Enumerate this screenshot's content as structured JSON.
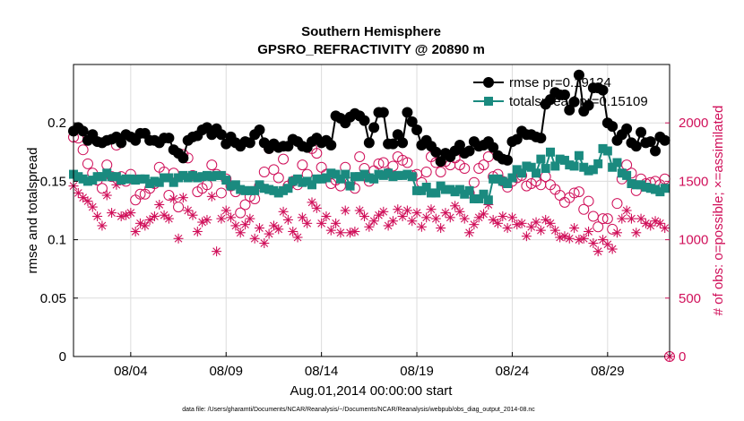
{
  "chart_data": {
    "type": "line",
    "title": "Southern Hemisphere",
    "subtitle": "GPSRO_REFRACTIVITY @ 20890 m",
    "xlabel": "Aug.01,2014 00:00:00 start",
    "ylabel": "rmse and totalspread",
    "y2label": "# of obs: o=possible; ×=assimilated",
    "footer": "data file: /Users/gharamti/Documents/NCAR/Reanalysis/~/Documents/NCAR/Reanalysis/webpub/obs_diag_output_2014-08.nc",
    "xlim": [
      1.0,
      32.25
    ],
    "ylim": [
      0,
      0.25
    ],
    "y2lim": [
      0,
      2500
    ],
    "x_ticks": [
      {
        "value": 4.0,
        "label": "08/04"
      },
      {
        "value": 9.0,
        "label": "08/09"
      },
      {
        "value": 14.0,
        "label": "08/14"
      },
      {
        "value": 19.0,
        "label": "08/19"
      },
      {
        "value": 24.0,
        "label": "08/24"
      },
      {
        "value": 29.0,
        "label": "08/29"
      }
    ],
    "y_ticks": [
      "0",
      "0.05",
      "0.1",
      "0.15",
      "0.2"
    ],
    "y2_ticks": [
      "0",
      "500",
      "1000",
      "1500",
      "2000"
    ],
    "grid": true,
    "legend_position": "top-right",
    "series": [
      {
        "name": "rmse  pr=0.19124",
        "color": "#000000",
        "marker": "filled-circle",
        "axis": "left",
        "x": [
          1.0,
          1.25,
          1.5,
          1.75,
          2.0,
          2.25,
          2.5,
          2.75,
          3.0,
          3.25,
          3.5,
          3.75,
          4.0,
          4.25,
          4.5,
          4.75,
          5.0,
          5.25,
          5.5,
          5.75,
          6.0,
          6.25,
          6.5,
          6.75,
          7.0,
          7.25,
          7.5,
          7.75,
          8.0,
          8.25,
          8.5,
          8.75,
          9.0,
          9.25,
          9.5,
          9.75,
          10.0,
          10.25,
          10.5,
          10.75,
          11.0,
          11.25,
          11.5,
          11.75,
          12.0,
          12.25,
          12.5,
          12.75,
          13.0,
          13.25,
          13.5,
          13.75,
          14.0,
          14.25,
          14.5,
          14.75,
          15.0,
          15.25,
          15.5,
          15.75,
          16.0,
          16.25,
          16.5,
          16.75,
          17.0,
          17.25,
          17.5,
          17.75,
          18.0,
          18.25,
          18.5,
          18.75,
          19.0,
          19.25,
          19.5,
          19.75,
          20.0,
          20.25,
          20.5,
          20.75,
          21.0,
          21.25,
          21.5,
          21.75,
          22.0,
          22.25,
          22.5,
          22.75,
          23.0,
          23.25,
          23.5,
          23.75,
          24.0,
          24.25,
          24.5,
          24.75,
          25.0,
          25.25,
          25.5,
          25.75,
          26.0,
          26.25,
          26.5,
          26.75,
          27.0,
          27.25,
          27.5,
          27.75,
          28.0,
          28.25,
          28.5,
          28.75,
          29.0,
          29.25,
          29.5,
          29.75,
          30.0,
          30.25,
          30.5,
          30.75,
          31.0,
          31.25,
          31.5,
          31.75,
          32.0
        ],
        "values": [
          0.193,
          0.196,
          0.193,
          0.185,
          0.19,
          0.184,
          0.183,
          0.185,
          0.186,
          0.188,
          0.183,
          0.19,
          0.188,
          0.185,
          0.191,
          0.191,
          0.185,
          0.185,
          0.183,
          0.187,
          0.187,
          0.177,
          0.174,
          0.17,
          0.185,
          0.188,
          0.189,
          0.194,
          0.196,
          0.19,
          0.195,
          0.19,
          0.182,
          0.188,
          0.183,
          0.18,
          0.184,
          0.183,
          0.19,
          0.194,
          0.183,
          0.178,
          0.182,
          0.179,
          0.18,
          0.18,
          0.186,
          0.184,
          0.18,
          0.179,
          0.184,
          0.187,
          0.183,
          0.185,
          0.181,
          0.206,
          0.204,
          0.2,
          0.205,
          0.208,
          0.206,
          0.202,
          0.183,
          0.196,
          0.209,
          0.209,
          0.182,
          0.182,
          0.19,
          0.183,
          0.209,
          0.201,
          0.194,
          0.181,
          0.185,
          0.18,
          0.175,
          0.167,
          0.174,
          0.171,
          0.176,
          0.181,
          0.174,
          0.176,
          0.184,
          0.18,
          0.181,
          0.184,
          0.179,
          0.172,
          0.169,
          0.168,
          0.184,
          0.186,
          0.193,
          0.19,
          0.19,
          0.188,
          0.187,
          0.216,
          0.22,
          0.226,
          0.224,
          0.224,
          0.211,
          0.218,
          0.241,
          0.21,
          0.215,
          0.23,
          0.23,
          0.228,
          0.2,
          0.197,
          0.185,
          0.19,
          0.195,
          0.183,
          0.18,
          0.192,
          0.183,
          0.184,
          0.176,
          0.188,
          0.185
        ]
      },
      {
        "name": "totalspread  pr=0.15109",
        "color": "#1a8a7f",
        "marker": "filled-square",
        "axis": "left",
        "x": [
          1.0,
          1.25,
          1.5,
          1.75,
          2.0,
          2.25,
          2.5,
          2.75,
          3.0,
          3.25,
          3.5,
          3.75,
          4.0,
          4.25,
          4.5,
          4.75,
          5.0,
          5.25,
          5.5,
          5.75,
          6.0,
          6.25,
          6.5,
          6.75,
          7.0,
          7.25,
          7.5,
          7.75,
          8.0,
          8.25,
          8.5,
          8.75,
          9.0,
          9.25,
          9.5,
          9.75,
          10.0,
          10.25,
          10.5,
          10.75,
          11.0,
          11.25,
          11.5,
          11.75,
          12.0,
          12.25,
          12.5,
          12.75,
          13.0,
          13.25,
          13.5,
          13.75,
          14.0,
          14.25,
          14.5,
          14.75,
          15.0,
          15.25,
          15.5,
          15.75,
          16.0,
          16.25,
          16.5,
          16.75,
          17.0,
          17.25,
          17.5,
          17.75,
          18.0,
          18.25,
          18.5,
          18.75,
          19.0,
          19.25,
          19.5,
          19.75,
          20.0,
          20.25,
          20.5,
          20.75,
          21.0,
          21.25,
          21.5,
          21.75,
          22.0,
          22.25,
          22.5,
          22.75,
          23.0,
          23.25,
          23.5,
          23.75,
          24.0,
          24.25,
          24.5,
          24.75,
          25.0,
          25.25,
          25.5,
          25.75,
          26.0,
          26.25,
          26.5,
          26.75,
          27.0,
          27.25,
          27.5,
          27.75,
          28.0,
          28.25,
          28.5,
          28.75,
          29.0,
          29.25,
          29.5,
          29.75,
          30.0,
          30.25,
          30.5,
          30.75,
          31.0,
          31.25,
          31.5,
          31.75,
          32.0
        ],
        "values": [
          0.156,
          0.154,
          0.152,
          0.15,
          0.151,
          0.154,
          0.154,
          0.157,
          0.154,
          0.154,
          0.151,
          0.152,
          0.152,
          0.151,
          0.152,
          0.152,
          0.148,
          0.15,
          0.149,
          0.153,
          0.153,
          0.149,
          0.153,
          0.155,
          0.153,
          0.155,
          0.153,
          0.154,
          0.155,
          0.154,
          0.155,
          0.155,
          0.151,
          0.146,
          0.147,
          0.143,
          0.142,
          0.142,
          0.142,
          0.147,
          0.144,
          0.143,
          0.142,
          0.14,
          0.142,
          0.144,
          0.15,
          0.152,
          0.149,
          0.15,
          0.147,
          0.152,
          0.152,
          0.153,
          0.157,
          0.156,
          0.152,
          0.156,
          0.146,
          0.154,
          0.154,
          0.156,
          0.153,
          0.152,
          0.156,
          0.155,
          0.157,
          0.154,
          0.155,
          0.155,
          0.156,
          0.154,
          0.142,
          0.142,
          0.145,
          0.14,
          0.14,
          0.146,
          0.143,
          0.143,
          0.141,
          0.143,
          0.139,
          0.142,
          0.135,
          0.135,
          0.139,
          0.134,
          0.152,
          0.152,
          0.15,
          0.148,
          0.153,
          0.16,
          0.157,
          0.163,
          0.162,
          0.157,
          0.169,
          0.161,
          0.175,
          0.163,
          0.169,
          0.168,
          0.164,
          0.163,
          0.172,
          0.162,
          0.159,
          0.16,
          0.165,
          0.178,
          0.176,
          0.162,
          0.166,
          0.157,
          0.155,
          0.148,
          0.147,
          0.147,
          0.145,
          0.144,
          0.143,
          0.141,
          0.144
        ]
      },
      {
        "name": "possible",
        "color": "#d0105a",
        "marker": "open-circle",
        "axis": "right",
        "x": [
          1.0,
          1.25,
          1.5,
          1.75,
          2.0,
          2.25,
          2.5,
          2.75,
          3.0,
          3.25,
          3.5,
          3.75,
          4.0,
          4.25,
          4.5,
          4.75,
          5.0,
          5.25,
          5.5,
          5.75,
          6.0,
          6.25,
          6.5,
          6.75,
          7.0,
          7.25,
          7.5,
          7.75,
          8.0,
          8.25,
          8.5,
          8.75,
          9.0,
          9.25,
          9.5,
          9.75,
          10.0,
          10.25,
          10.5,
          10.75,
          11.0,
          11.25,
          11.5,
          11.75,
          12.0,
          12.25,
          12.5,
          12.75,
          13.0,
          13.25,
          13.5,
          13.75,
          14.0,
          14.25,
          14.5,
          14.75,
          15.0,
          15.25,
          15.5,
          15.75,
          16.0,
          16.25,
          16.5,
          16.75,
          17.0,
          17.25,
          17.5,
          17.75,
          18.0,
          18.25,
          18.5,
          18.75,
          19.0,
          19.25,
          19.5,
          19.75,
          20.0,
          20.25,
          20.5,
          20.75,
          21.0,
          21.25,
          21.5,
          21.75,
          22.0,
          22.25,
          22.5,
          22.75,
          23.0,
          23.25,
          23.5,
          23.75,
          24.0,
          24.25,
          24.5,
          24.75,
          25.0,
          25.25,
          25.5,
          25.75,
          26.0,
          26.25,
          26.5,
          26.75,
          27.0,
          27.25,
          27.5,
          27.75,
          28.0,
          28.25,
          28.5,
          28.75,
          29.0,
          29.25,
          29.5,
          29.75,
          30.0,
          30.25,
          30.5,
          30.75,
          31.0,
          31.25,
          31.5,
          31.75,
          32.0
        ],
        "values": [
          1878,
          1870,
          1770,
          1650,
          1570,
          1510,
          1440,
          1640,
          1540,
          1810,
          1540,
          1500,
          1560,
          1340,
          1390,
          1390,
          1440,
          1480,
          1620,
          1580,
          1380,
          1570,
          1280,
          1730,
          1700,
          1550,
          1410,
          1440,
          1470,
          1640,
          1560,
          1400,
          1520,
          1460,
          1410,
          1230,
          1300,
          1370,
          1350,
          1460,
          1580,
          1780,
          1600,
          1530,
          1690,
          1460,
          1500,
          1470,
          1640,
          1560,
          1780,
          1740,
          1620,
          1560,
          1480,
          1510,
          1460,
          1620,
          1490,
          1440,
          1710,
          1610,
          1500,
          1590,
          1650,
          1660,
          1570,
          1630,
          1710,
          1680,
          1660,
          1550,
          1560,
          1490,
          1580,
          1710,
          1660,
          1580,
          1670,
          1640,
          1700,
          1640,
          1610,
          1400,
          1490,
          1610,
          1640,
          1710,
          1540,
          1560,
          1500,
          1450,
          1500,
          1530,
          1550,
          1460,
          1480,
          1500,
          1470,
          1540,
          1470,
          1430,
          1380,
          1320,
          1360,
          1400,
          1410,
          1260,
          1330,
          1200,
          1110,
          1180,
          1180,
          1090,
          1310,
          1520,
          1640,
          1570,
          1420,
          1520,
          1480,
          1490,
          1500,
          1470,
          1520
        ]
      },
      {
        "name": "assimilated",
        "color": "#d0105a",
        "marker": "asterisk",
        "axis": "right",
        "x": [
          1.0,
          1.25,
          1.5,
          1.75,
          2.0,
          2.25,
          2.5,
          2.75,
          3.0,
          3.25,
          3.5,
          3.75,
          4.0,
          4.25,
          4.5,
          4.75,
          5.0,
          5.25,
          5.5,
          5.75,
          6.0,
          6.25,
          6.5,
          6.75,
          7.0,
          7.25,
          7.5,
          7.75,
          8.0,
          8.25,
          8.5,
          8.75,
          9.0,
          9.25,
          9.5,
          9.75,
          10.0,
          10.25,
          10.5,
          10.75,
          11.0,
          11.25,
          11.5,
          11.75,
          12.0,
          12.25,
          12.5,
          12.75,
          13.0,
          13.25,
          13.5,
          13.75,
          14.0,
          14.25,
          14.5,
          14.75,
          15.0,
          15.25,
          15.5,
          15.75,
          16.0,
          16.25,
          16.5,
          16.75,
          17.0,
          17.25,
          17.5,
          17.75,
          18.0,
          18.25,
          18.5,
          18.75,
          19.0,
          19.25,
          19.5,
          19.75,
          20.0,
          20.25,
          20.5,
          20.75,
          21.0,
          21.25,
          21.5,
          21.75,
          22.0,
          22.25,
          22.5,
          22.75,
          23.0,
          23.25,
          23.5,
          23.75,
          24.0,
          24.25,
          24.5,
          24.75,
          25.0,
          25.25,
          25.5,
          25.75,
          26.0,
          26.25,
          26.5,
          26.75,
          27.0,
          27.25,
          27.5,
          27.75,
          28.0,
          28.25,
          28.5,
          28.75,
          29.0,
          29.25,
          29.5,
          29.75,
          30.0,
          30.25,
          30.5,
          30.75,
          31.0,
          31.25,
          31.5,
          31.75,
          32.0
        ],
        "values": [
          1460,
          1400,
          1360,
          1330,
          1280,
          1200,
          1120,
          1380,
          1230,
          1470,
          1200,
          1210,
          1230,
          1070,
          1140,
          1120,
          1170,
          1200,
          1300,
          1210,
          1180,
          1350,
          1010,
          1360,
          1250,
          1210,
          1070,
          1150,
          1170,
          1370,
          900,
          1180,
          1250,
          1190,
          1120,
          1060,
          1130,
          1180,
          1010,
          1100,
          970,
          1050,
          1120,
          1090,
          1240,
          1170,
          1070,
          1020,
          1190,
          1140,
          1320,
          1270,
          1140,
          1200,
          1080,
          1140,
          1060,
          1250,
          1060,
          1070,
          1250,
          1200,
          1110,
          1160,
          1210,
          1240,
          1120,
          1160,
          1260,
          1200,
          1250,
          1160,
          1230,
          1110,
          1190,
          1260,
          1180,
          1100,
          1230,
          1190,
          1290,
          1240,
          1180,
          1060,
          1130,
          1190,
          1220,
          1300,
          1170,
          1140,
          1200,
          1100,
          1190,
          1130,
          1140,
          1030,
          1110,
          1150,
          1080,
          1170,
          1140,
          1080,
          1020,
          1030,
          1010,
          1100,
          1000,
          1010,
          1070,
          970,
          900,
          1000,
          960,
          920,
          1060,
          1180,
          1250,
          1180,
          1060,
          1180,
          1140,
          1120,
          1160,
          1140,
          1100
        ]
      }
    ]
  }
}
